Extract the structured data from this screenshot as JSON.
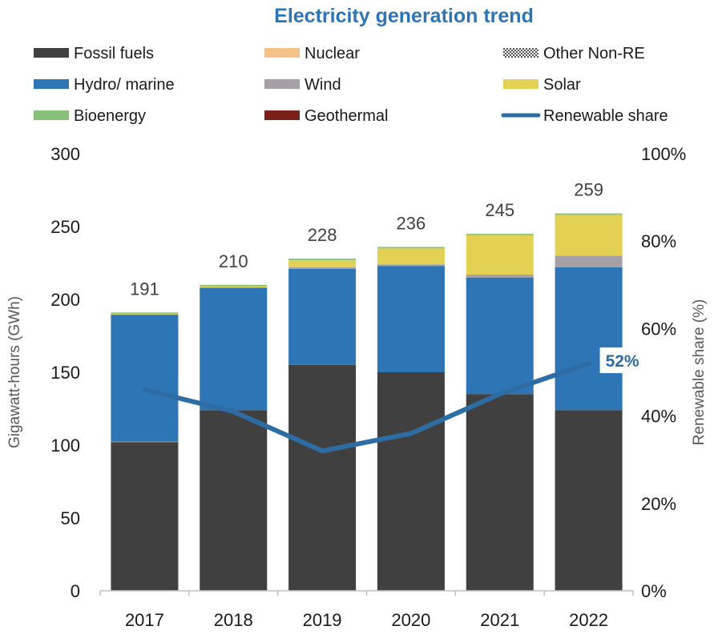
{
  "chart_data": {
    "type": "bar",
    "stacked": true,
    "title": "Electricity generation trend",
    "ylabel": "Gigawatt-hours (GWh)",
    "y2label": "Renewable share (%)",
    "ylim": [
      0,
      300
    ],
    "y2lim": [
      0,
      100
    ],
    "yticks": [
      "0",
      "50",
      "100",
      "150",
      "200",
      "250",
      "300"
    ],
    "y2ticks": [
      "0%",
      "20%",
      "40%",
      "60%",
      "80%",
      "100%"
    ],
    "categories": [
      "2017",
      "2018",
      "2019",
      "2020",
      "2021",
      "2022"
    ],
    "totals": [
      "191",
      "210",
      "228",
      "236",
      "245",
      "259"
    ],
    "series": [
      {
        "name": "Fossil fuels",
        "color": "#404040",
        "values": [
          102,
          124,
          155,
          150,
          135,
          124
        ]
      },
      {
        "name": "Nuclear",
        "color": "#f5c28a",
        "values": [
          0,
          0,
          0,
          0,
          0,
          0
        ]
      },
      {
        "name": "Other Non-RE",
        "color": "#8a8a8a",
        "values": [
          0.5,
          0,
          0,
          0,
          0,
          0
        ]
      },
      {
        "name": "Hydro/ marine",
        "color": "#2e75b6",
        "values": [
          87,
          84,
          66,
          73,
          80,
          98
        ]
      },
      {
        "name": "Wind",
        "color": "#a6a0a6",
        "values": [
          0,
          0,
          1,
          1,
          2,
          8
        ]
      },
      {
        "name": "Solar",
        "color": "#e3d153",
        "values": [
          0.5,
          1,
          5,
          11,
          27,
          28
        ]
      },
      {
        "name": "Bioenergy",
        "color": "#86c27a",
        "values": [
          1,
          1,
          1,
          1,
          1,
          1
        ]
      },
      {
        "name": "Geothermal",
        "color": "#7b2018",
        "values": [
          0,
          0,
          0,
          0,
          0,
          0
        ]
      }
    ],
    "line": {
      "name": "Renewable share",
      "color": "#2e6da4",
      "values": [
        46,
        41,
        32,
        36,
        45,
        52
      ]
    },
    "line_label": "52%",
    "legend_position": "top",
    "grid": false
  }
}
